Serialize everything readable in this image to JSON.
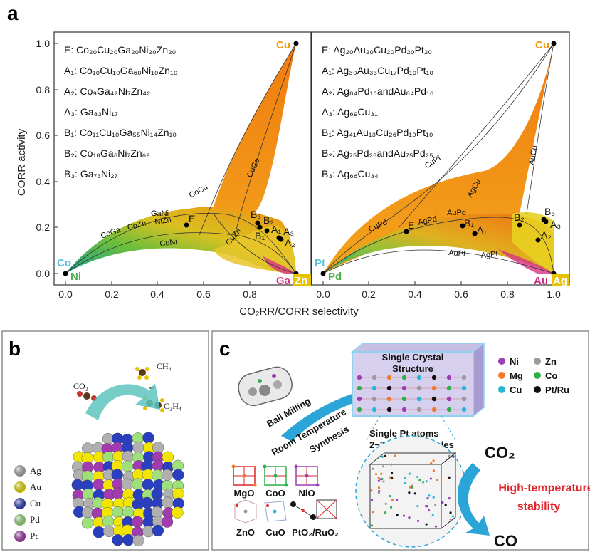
{
  "panel_a": {
    "letter": "a",
    "ylabel": "CORR activity",
    "xlabel": "CO₂RR/CORR selectivity",
    "yticks": [
      "0.0",
      "0.2",
      "0.4",
      "0.6",
      "0.8",
      "1.0"
    ],
    "xticks": [
      "0.0",
      "0.2",
      "0.4",
      "0.6",
      "0.8",
      "1.0"
    ],
    "left": {
      "legend": [
        "E: Co₂₀Cu₂₀Ga₂₀Ni₂₀Zn₂₀",
        "A₁: Co₁₀Cu₁₀Ga₆₀Ni₁₀Zn₁₀",
        "A₂: Co₉Ga₄₂Ni₇Zn₄₂",
        "A₃: Ga₈₃Ni₁₇",
        "B₁: Co₁₁Cu₁₀Ga₅₅Ni₁₄Zn₁₀",
        "B₂: Co₁₈Ga₆Ni₇Zn₆₉",
        "B₃: Ga₇₃Ni₂₇"
      ],
      "corners": {
        "top": "Cu",
        "bl_top": "Co",
        "bl_bottom": "Ni",
        "br_left": "Ga",
        "br_right": "Zn"
      },
      "curve_labels": [
        "GaNi",
        "CoCu",
        "CuGa",
        "CoGa",
        "CoZn",
        "NiZn",
        "CuNi",
        "CuZn"
      ],
      "points": [
        "E",
        "B₃",
        "B₂",
        "B₁",
        "A₁",
        "A₃",
        "A₂"
      ],
      "colors": {
        "top": "#f39c12",
        "bl_top": "#5bc0de",
        "bl_bottom": "#4caf50",
        "ga": "#d63384",
        "zn": "#e6c200"
      }
    },
    "right": {
      "legend": [
        "E: Ag₂₀Au₂₀Cu₂₀Pd₂₀Pt₂₀",
        "A₁: Ag₃₀Au₃₃Cu₁₇Pd₁₀Pt₁₀",
        "A₂: Ag₈₄Pd₁₆andAu₈₄Pd₁₆",
        "A₃: Ag₆₉Cu₃₁",
        "B₁: Ag₄₁Au₁₃Cu₂₆Pd₁₀Pt₁₀",
        "B₂: Ag₇₅Pd₂₅andAu₇₅Pd₂₅",
        "B₃: Ag₆₆Cu₃₄"
      ],
      "corners": {
        "top": "Cu",
        "bl_top": "Pt",
        "bl_bottom": "Pd",
        "br_left": "Au",
        "br_right": "Ag"
      },
      "curve_labels": [
        "CuPt",
        "AuCu",
        "AgCu",
        "CuPd",
        "AgPd",
        "AuPd",
        "AuPt",
        "AgPt"
      ],
      "points": [
        "E",
        "B₁",
        "A₁",
        "B₂",
        "B₃",
        "A₃",
        "A₂"
      ]
    }
  },
  "panel_b": {
    "letter": "b",
    "co2": "CO₂",
    "ch4": "CH₄",
    "plus": "+",
    "c2h4": "C₂H₄",
    "legend": [
      {
        "label": "Ag",
        "color": "#b0b0b0"
      },
      {
        "label": "Au",
        "color": "#f2e600"
      },
      {
        "label": "Cu",
        "color": "#2a3fbf"
      },
      {
        "label": "Pd",
        "color": "#9ee07a"
      },
      {
        "label": "Pt",
        "color": "#a23ab0"
      }
    ]
  },
  "panel_c": {
    "letter": "c",
    "crystal_title_1": "Single Crystal",
    "crystal_title_2": "Structure",
    "ball_milling": "Ball Milling",
    "rt_1": "Room Temperature",
    "rt_2": "Synthesis",
    "single_pt_1": "Single Pt atoms",
    "single_pt_2": "2~3 nm Pt particles",
    "co2": "CO₂",
    "co": "CO",
    "high_temp_1": "High-temperature",
    "high_temp_2": "stability",
    "oxides": [
      "MgO",
      "CoO",
      "NiO",
      "ZnO",
      "CuO",
      "PtO₂/RuO₂"
    ],
    "element_legend": [
      {
        "label": "Ni",
        "color": "#9b3fb5"
      },
      {
        "label": "Zn",
        "color": "#9a9a9a"
      },
      {
        "label": "Mg",
        "color": "#f07a2a"
      },
      {
        "label": "Co",
        "color": "#2eaf4a"
      },
      {
        "label": "Cu",
        "color": "#29b6d6"
      },
      {
        "label": "Pt/Ru",
        "color": "#111111"
      }
    ],
    "accent": "#e0262b"
  }
}
